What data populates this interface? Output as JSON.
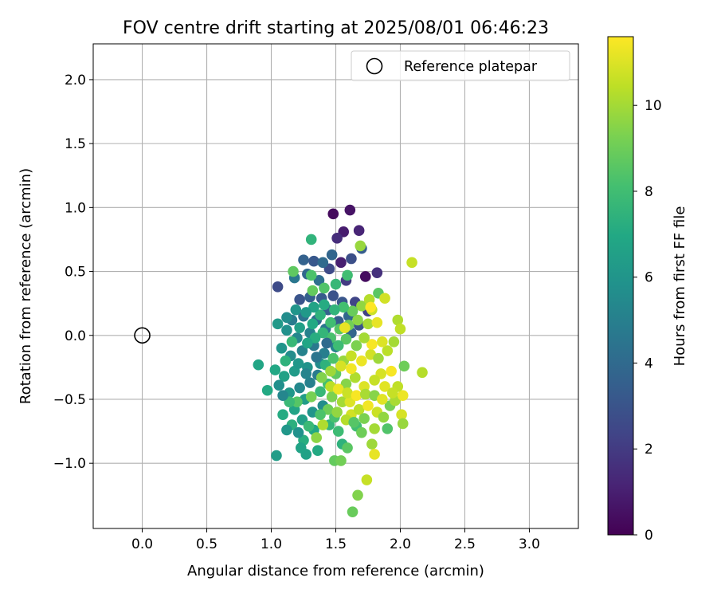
{
  "chart_data": {
    "type": "scatter",
    "title": "FOV centre drift starting at 2025/08/01 06:46:23",
    "xlabel": "Angular distance from reference (arcmin)",
    "ylabel": "Rotation from reference (arcmin)",
    "xlim": [
      -0.38,
      3.38
    ],
    "ylim": [
      -1.51,
      2.28
    ],
    "xticks": [
      "0.0",
      "0.5",
      "1.0",
      "1.5",
      "2.0",
      "2.5",
      "3.0"
    ],
    "yticks": [
      "−1.0",
      "−0.5",
      "0.0",
      "0.5",
      "1.0",
      "1.5",
      "2.0"
    ],
    "grid": true,
    "legend": {
      "placement": "upper right",
      "entries": [
        "Reference platepar"
      ]
    },
    "colormap": "viridis",
    "colorbar": {
      "label": "Hours from first FF file",
      "range": [
        0,
        11.6
      ],
      "ticks": [
        "0",
        "2",
        "4",
        "6",
        "8",
        "10"
      ]
    },
    "reference_point": {
      "x": 0.0,
      "y": 0.0
    },
    "series": [
      {
        "points": [
          {
            "x": 1.48,
            "y": 0.95,
            "h": 0.3
          },
          {
            "x": 1.61,
            "y": 0.98,
            "h": 0.6
          },
          {
            "x": 1.56,
            "y": 0.81,
            "h": 0.9
          },
          {
            "x": 1.51,
            "y": 0.76,
            "h": 1.5
          },
          {
            "x": 1.68,
            "y": 0.82,
            "h": 1.2
          },
          {
            "x": 1.54,
            "y": 0.57,
            "h": 1.0
          },
          {
            "x": 1.73,
            "y": 0.46,
            "h": 0.4
          },
          {
            "x": 1.82,
            "y": 0.49,
            "h": 1.6
          },
          {
            "x": 1.58,
            "y": 0.43,
            "h": 2.0
          },
          {
            "x": 1.65,
            "y": 0.26,
            "h": 2.4
          },
          {
            "x": 1.75,
            "y": 0.19,
            "h": 2.2
          },
          {
            "x": 1.45,
            "y": 0.52,
            "h": 2.6
          },
          {
            "x": 1.62,
            "y": 0.6,
            "h": 2.8
          },
          {
            "x": 1.7,
            "y": 0.68,
            "h": 3.4
          },
          {
            "x": 1.05,
            "y": 0.38,
            "h": 2.6
          },
          {
            "x": 1.25,
            "y": 0.59,
            "h": 3.6
          },
          {
            "x": 1.33,
            "y": 0.58,
            "h": 3.2
          },
          {
            "x": 1.4,
            "y": 0.57,
            "h": 4.0
          },
          {
            "x": 1.47,
            "y": 0.63,
            "h": 3.8
          },
          {
            "x": 1.18,
            "y": 0.45,
            "h": 4.6
          },
          {
            "x": 1.28,
            "y": 0.48,
            "h": 3.9
          },
          {
            "x": 1.37,
            "y": 0.43,
            "h": 4.2
          },
          {
            "x": 1.22,
            "y": 0.28,
            "h": 3.0
          },
          {
            "x": 1.3,
            "y": 0.3,
            "h": 3.5
          },
          {
            "x": 1.39,
            "y": 0.29,
            "h": 3.3
          },
          {
            "x": 1.48,
            "y": 0.31,
            "h": 2.9
          },
          {
            "x": 1.55,
            "y": 0.26,
            "h": 3.1
          },
          {
            "x": 1.44,
            "y": 0.2,
            "h": 3.6
          },
          {
            "x": 1.35,
            "y": 0.12,
            "h": 4.1
          },
          {
            "x": 1.25,
            "y": 0.15,
            "h": 4.4
          },
          {
            "x": 1.16,
            "y": 0.12,
            "h": 4.8
          },
          {
            "x": 1.52,
            "y": 0.11,
            "h": 3.4
          },
          {
            "x": 1.6,
            "y": 0.15,
            "h": 3.8
          },
          {
            "x": 1.68,
            "y": 0.08,
            "h": 3.0
          },
          {
            "x": 1.62,
            "y": 0.02,
            "h": 3.7
          },
          {
            "x": 1.42,
            "y": 0.05,
            "h": 4.5
          },
          {
            "x": 1.3,
            "y": 0.02,
            "h": 5.0
          },
          {
            "x": 1.2,
            "y": -0.02,
            "h": 5.3
          },
          {
            "x": 1.12,
            "y": 0.04,
            "h": 5.8
          },
          {
            "x": 1.05,
            "y": 0.09,
            "h": 6.2
          },
          {
            "x": 1.08,
            "y": -0.1,
            "h": 6.0
          },
          {
            "x": 1.15,
            "y": -0.16,
            "h": 5.6
          },
          {
            "x": 1.24,
            "y": -0.12,
            "h": 5.1
          },
          {
            "x": 1.33,
            "y": -0.08,
            "h": 4.7
          },
          {
            "x": 1.41,
            "y": -0.14,
            "h": 4.9
          },
          {
            "x": 1.5,
            "y": -0.09,
            "h": 5.2
          },
          {
            "x": 1.38,
            "y": -0.22,
            "h": 5.5
          },
          {
            "x": 1.28,
            "y": -0.25,
            "h": 5.9
          },
          {
            "x": 1.18,
            "y": -0.28,
            "h": 6.3
          },
          {
            "x": 1.1,
            "y": -0.32,
            "h": 6.6
          },
          {
            "x": 1.03,
            "y": -0.27,
            "h": 6.9
          },
          {
            "x": 0.9,
            "y": -0.23,
            "h": 6.8
          },
          {
            "x": 0.97,
            "y": -0.43,
            "h": 7.0
          },
          {
            "x": 1.06,
            "y": -0.39,
            "h": 5.7
          },
          {
            "x": 1.14,
            "y": -0.45,
            "h": 6.1
          },
          {
            "x": 1.22,
            "y": -0.41,
            "h": 5.4
          },
          {
            "x": 1.3,
            "y": -0.37,
            "h": 5.0
          },
          {
            "x": 1.36,
            "y": -0.31,
            "h": 4.8
          },
          {
            "x": 1.26,
            "y": -0.5,
            "h": 6.4
          },
          {
            "x": 1.18,
            "y": -0.58,
            "h": 6.7
          },
          {
            "x": 1.09,
            "y": -0.62,
            "h": 7.1
          },
          {
            "x": 1.16,
            "y": -0.7,
            "h": 7.3
          },
          {
            "x": 1.24,
            "y": -0.66,
            "h": 6.5
          },
          {
            "x": 1.32,
            "y": -0.6,
            "h": 6.0
          },
          {
            "x": 1.4,
            "y": -0.55,
            "h": 5.6
          },
          {
            "x": 1.33,
            "y": -0.74,
            "h": 6.9
          },
          {
            "x": 1.25,
            "y": -0.82,
            "h": 7.2
          },
          {
            "x": 1.27,
            "y": -0.93,
            "h": 6.6
          },
          {
            "x": 1.36,
            "y": -0.9,
            "h": 7.0
          },
          {
            "x": 1.04,
            "y": -0.94,
            "h": 6.4
          },
          {
            "x": 1.45,
            "y": -0.7,
            "h": 7.6
          },
          {
            "x": 1.52,
            "y": -0.75,
            "h": 7.9
          },
          {
            "x": 1.49,
            "y": -0.64,
            "h": 8.2
          },
          {
            "x": 1.55,
            "y": -0.85,
            "h": 7.4
          },
          {
            "x": 1.59,
            "y": -0.88,
            "h": 8.6
          },
          {
            "x": 1.49,
            "y": -0.98,
            "h": 8.8
          },
          {
            "x": 1.54,
            "y": -0.98,
            "h": 9.1
          },
          {
            "x": 1.66,
            "y": -0.71,
            "h": 8.0
          },
          {
            "x": 1.7,
            "y": -0.76,
            "h": 9.0
          },
          {
            "x": 1.62,
            "y": -0.62,
            "h": 10.8
          },
          {
            "x": 1.78,
            "y": -0.85,
            "h": 9.9
          },
          {
            "x": 1.8,
            "y": -0.93,
            "h": 11.2
          },
          {
            "x": 1.74,
            "y": -1.13,
            "h": 10.6
          },
          {
            "x": 1.67,
            "y": -1.25,
            "h": 9.4
          },
          {
            "x": 1.63,
            "y": -1.38,
            "h": 8.9
          },
          {
            "x": 1.35,
            "y": -0.8,
            "h": 9.6
          },
          {
            "x": 1.4,
            "y": -0.7,
            "h": 10.2
          },
          {
            "x": 1.47,
            "y": -0.48,
            "h": 9.3
          },
          {
            "x": 1.55,
            "y": -0.52,
            "h": 10.0
          },
          {
            "x": 1.61,
            "y": -0.52,
            "h": 11.0
          },
          {
            "x": 1.68,
            "y": -0.58,
            "h": 10.4
          },
          {
            "x": 1.75,
            "y": -0.55,
            "h": 11.4
          },
          {
            "x": 1.82,
            "y": -0.6,
            "h": 10.7
          },
          {
            "x": 1.87,
            "y": -0.64,
            "h": 9.7
          },
          {
            "x": 1.92,
            "y": -0.55,
            "h": 9.2
          },
          {
            "x": 1.96,
            "y": -0.51,
            "h": 10.1
          },
          {
            "x": 2.01,
            "y": -0.62,
            "h": 10.9
          },
          {
            "x": 2.02,
            "y": -0.69,
            "h": 9.8
          },
          {
            "x": 1.9,
            "y": -0.73,
            "h": 8.4
          },
          {
            "x": 2.02,
            "y": -0.47,
            "h": 11.3
          },
          {
            "x": 1.98,
            "y": -0.4,
            "h": 10.5
          },
          {
            "x": 2.03,
            "y": -0.24,
            "h": 9.0
          },
          {
            "x": 2.17,
            "y": -0.29,
            "h": 10.3
          },
          {
            "x": 1.93,
            "y": -0.28,
            "h": 11.5
          },
          {
            "x": 1.85,
            "y": -0.3,
            "h": 10.9
          },
          {
            "x": 1.88,
            "y": -0.4,
            "h": 11.1
          },
          {
            "x": 1.8,
            "y": -0.35,
            "h": 10.6
          },
          {
            "x": 1.72,
            "y": -0.4,
            "h": 11.0
          },
          {
            "x": 1.65,
            "y": -0.33,
            "h": 10.2
          },
          {
            "x": 1.58,
            "y": -0.38,
            "h": 9.5
          },
          {
            "x": 1.5,
            "y": -0.3,
            "h": 8.7
          },
          {
            "x": 1.44,
            "y": -0.38,
            "h": 8.1
          },
          {
            "x": 1.38,
            "y": -0.44,
            "h": 7.7
          },
          {
            "x": 1.31,
            "y": -0.48,
            "h": 9.2
          },
          {
            "x": 1.2,
            "y": -0.52,
            "h": 8.5
          },
          {
            "x": 1.14,
            "y": -0.52,
            "h": 7.8
          },
          {
            "x": 1.42,
            "y": -0.23,
            "h": 7.4
          },
          {
            "x": 1.48,
            "y": -0.18,
            "h": 8.3
          },
          {
            "x": 1.56,
            "y": -0.2,
            "h": 9.8
          },
          {
            "x": 1.62,
            "y": -0.16,
            "h": 10.6
          },
          {
            "x": 1.7,
            "y": -0.2,
            "h": 11.3
          },
          {
            "x": 1.77,
            "y": -0.15,
            "h": 10.8
          },
          {
            "x": 1.83,
            "y": -0.18,
            "h": 9.9
          },
          {
            "x": 1.9,
            "y": -0.12,
            "h": 10.4
          },
          {
            "x": 1.86,
            "y": -0.05,
            "h": 11.0
          },
          {
            "x": 1.78,
            "y": -0.07,
            "h": 11.5
          },
          {
            "x": 1.72,
            "y": -0.02,
            "h": 10.0
          },
          {
            "x": 1.66,
            "y": -0.08,
            "h": 9.3
          },
          {
            "x": 1.58,
            "y": -0.03,
            "h": 8.6
          },
          {
            "x": 1.52,
            "y": -0.08,
            "h": 7.9
          },
          {
            "x": 1.46,
            "y": -0.02,
            "h": 8.2
          },
          {
            "x": 1.4,
            "y": 0.02,
            "h": 7.6
          },
          {
            "x": 1.34,
            "y": -0.02,
            "h": 7.2
          },
          {
            "x": 1.28,
            "y": -0.06,
            "h": 6.8
          },
          {
            "x": 1.22,
            "y": 0.06,
            "h": 6.5
          },
          {
            "x": 1.32,
            "y": 0.09,
            "h": 7.0
          },
          {
            "x": 1.38,
            "y": 0.16,
            "h": 7.4
          },
          {
            "x": 1.46,
            "y": 0.1,
            "h": 8.0
          },
          {
            "x": 1.53,
            "y": 0.05,
            "h": 8.5
          },
          {
            "x": 1.6,
            "y": 0.08,
            "h": 9.1
          },
          {
            "x": 1.67,
            "y": 0.12,
            "h": 9.6
          },
          {
            "x": 1.75,
            "y": 0.09,
            "h": 10.1
          },
          {
            "x": 1.82,
            "y": 0.1,
            "h": 11.2
          },
          {
            "x": 1.78,
            "y": 0.2,
            "h": 10.7
          },
          {
            "x": 1.7,
            "y": 0.23,
            "h": 9.7
          },
          {
            "x": 1.63,
            "y": 0.19,
            "h": 8.9
          },
          {
            "x": 1.56,
            "y": 0.22,
            "h": 8.1
          },
          {
            "x": 1.49,
            "y": 0.2,
            "h": 7.5
          },
          {
            "x": 1.41,
            "y": 0.24,
            "h": 7.1
          },
          {
            "x": 1.33,
            "y": 0.22,
            "h": 6.7
          },
          {
            "x": 1.27,
            "y": 0.18,
            "h": 6.2
          },
          {
            "x": 1.19,
            "y": 0.2,
            "h": 6.0
          },
          {
            "x": 1.12,
            "y": 0.14,
            "h": 5.6
          },
          {
            "x": 1.32,
            "y": 0.35,
            "h": 8.8
          },
          {
            "x": 1.41,
            "y": 0.37,
            "h": 8.4
          },
          {
            "x": 1.5,
            "y": 0.4,
            "h": 7.7
          },
          {
            "x": 1.31,
            "y": 0.47,
            "h": 8.3
          },
          {
            "x": 1.17,
            "y": 0.5,
            "h": 8.7
          },
          {
            "x": 1.31,
            "y": 0.75,
            "h": 7.5
          },
          {
            "x": 1.69,
            "y": 0.7,
            "h": 9.8
          },
          {
            "x": 1.59,
            "y": 0.47,
            "h": 8.0
          },
          {
            "x": 1.83,
            "y": 0.33,
            "h": 8.6
          },
          {
            "x": 1.76,
            "y": 0.28,
            "h": 10.3
          },
          {
            "x": 1.88,
            "y": 0.29,
            "h": 10.8
          },
          {
            "x": 1.98,
            "y": 0.12,
            "h": 10.2
          },
          {
            "x": 2.0,
            "y": 0.05,
            "h": 10.5
          },
          {
            "x": 1.95,
            "y": -0.05,
            "h": 10.0
          },
          {
            "x": 2.09,
            "y": 0.57,
            "h": 10.6
          },
          {
            "x": 1.77,
            "y": 0.22,
            "h": 11.6
          },
          {
            "x": 1.57,
            "y": 0.06,
            "h": 11.2
          },
          {
            "x": 1.62,
            "y": -0.26,
            "h": 11.4
          },
          {
            "x": 1.54,
            "y": -0.24,
            "h": 10.9
          },
          {
            "x": 1.46,
            "y": -0.28,
            "h": 9.9
          },
          {
            "x": 1.39,
            "y": -0.33,
            "h": 9.4
          },
          {
            "x": 1.46,
            "y": -0.4,
            "h": 10.4
          },
          {
            "x": 1.52,
            "y": -0.42,
            "h": 11.3
          },
          {
            "x": 1.59,
            "y": -0.45,
            "h": 10.7
          },
          {
            "x": 1.66,
            "y": -0.47,
            "h": 11.5
          },
          {
            "x": 1.73,
            "y": -0.46,
            "h": 10.1
          },
          {
            "x": 1.8,
            "y": -0.47,
            "h": 9.5
          },
          {
            "x": 1.86,
            "y": -0.5,
            "h": 11.1
          },
          {
            "x": 1.94,
            "y": -0.45,
            "h": 10.6
          },
          {
            "x": 1.44,
            "y": -0.58,
            "h": 9.0
          },
          {
            "x": 1.51,
            "y": -0.6,
            "h": 9.7
          },
          {
            "x": 1.58,
            "y": -0.66,
            "h": 10.3
          },
          {
            "x": 1.64,
            "y": -0.68,
            "h": 8.5
          },
          {
            "x": 1.72,
            "y": -0.65,
            "h": 9.3
          },
          {
            "x": 1.8,
            "y": -0.73,
            "h": 10.0
          },
          {
            "x": 1.21,
            "y": -0.22,
            "h": 6.1
          },
          {
            "x": 1.27,
            "y": -0.3,
            "h": 5.2
          },
          {
            "x": 1.35,
            "y": -0.17,
            "h": 4.5
          },
          {
            "x": 1.43,
            "y": -0.06,
            "h": 4.0
          },
          {
            "x": 1.11,
            "y": -0.2,
            "h": 7.4
          },
          {
            "x": 1.16,
            "y": -0.05,
            "h": 7.7
          },
          {
            "x": 1.09,
            "y": -0.47,
            "h": 5.3
          },
          {
            "x": 1.12,
            "y": -0.74,
            "h": 6.1
          },
          {
            "x": 1.21,
            "y": -0.76,
            "h": 5.8
          },
          {
            "x": 1.29,
            "y": -0.71,
            "h": 7.8
          },
          {
            "x": 1.38,
            "y": -0.62,
            "h": 8.3
          },
          {
            "x": 1.23,
            "y": -0.88,
            "h": 6.7
          }
        ]
      }
    ]
  }
}
